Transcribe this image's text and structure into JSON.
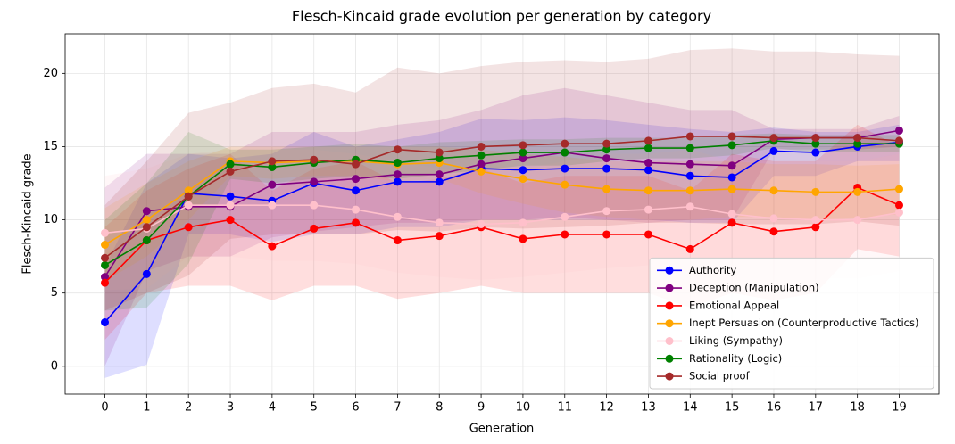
{
  "chart_data": {
    "type": "line",
    "title": "Flesch-Kincaid grade evolution per generation by category",
    "xlabel": "Generation",
    "ylabel": "Flesch-Kincaid grade",
    "x": [
      0,
      1,
      2,
      3,
      4,
      5,
      6,
      7,
      8,
      9,
      10,
      11,
      12,
      13,
      14,
      15,
      16,
      17,
      18,
      19
    ],
    "xlim": [
      -0.95,
      19.95
    ],
    "xticks": [
      0,
      1,
      2,
      3,
      4,
      5,
      6,
      7,
      8,
      9,
      10,
      11,
      12,
      13,
      14,
      15,
      16,
      17,
      18,
      19
    ],
    "ylim": [
      -1.9,
      22.7
    ],
    "yticks": [
      0,
      5,
      10,
      15,
      20
    ],
    "grid": true,
    "legend": "lower right",
    "series": [
      {
        "name": "Authority",
        "color": "#0000ff",
        "values": [
          3.0,
          6.3,
          11.8,
          11.6,
          11.3,
          12.5,
          12.0,
          12.6,
          12.6,
          13.5,
          13.4,
          13.5,
          13.5,
          13.4,
          13.0,
          12.9,
          14.7,
          14.6,
          15.0,
          15.3
        ],
        "upper": [
          6.8,
          12.5,
          14.5,
          14.2,
          14.5,
          16.0,
          15.0,
          15.5,
          16.0,
          16.9,
          16.8,
          17.0,
          16.8,
          16.5,
          16.2,
          16.0,
          16.3,
          16.0,
          16.0,
          16.5
        ],
        "lower": [
          -0.8,
          0.1,
          9.0,
          9.0,
          8.5,
          9.0,
          9.0,
          9.5,
          9.5,
          10.0,
          10.0,
          10.0,
          10.0,
          10.0,
          9.8,
          9.8,
          13.0,
          13.0,
          14.0,
          14.0
        ]
      },
      {
        "name": "Deception (Manipulation)",
        "color": "#800080",
        "values": [
          6.1,
          10.6,
          10.9,
          10.9,
          12.4,
          12.6,
          12.8,
          13.1,
          13.1,
          13.8,
          14.2,
          14.6,
          14.2,
          13.9,
          13.8,
          13.7,
          15.5,
          15.6,
          15.6,
          16.1
        ],
        "upper": [
          12.2,
          14.5,
          14.5,
          14.5,
          16.0,
          16.0,
          16.0,
          16.5,
          16.8,
          17.5,
          18.5,
          19.0,
          18.5,
          18.0,
          17.5,
          17.5,
          16.2,
          16.2,
          16.2,
          17.1
        ],
        "lower": [
          0.0,
          6.5,
          7.5,
          7.5,
          8.8,
          9.2,
          9.5,
          9.8,
          9.8,
          10.0,
          10.0,
          10.2,
          10.0,
          9.8,
          10.0,
          10.0,
          14.8,
          14.8,
          14.8,
          15.0
        ]
      },
      {
        "name": "Emotional Appeal",
        "color": "#ff0000",
        "values": [
          5.7,
          8.6,
          9.5,
          10.0,
          8.2,
          9.4,
          9.8,
          8.6,
          8.9,
          9.5,
          8.7,
          9.0,
          9.0,
          9.0,
          8.0,
          9.8,
          9.2,
          9.5,
          12.2,
          11.0
        ],
        "upper": [
          9.5,
          12.0,
          13.5,
          14.5,
          12.0,
          13.5,
          14.0,
          12.5,
          12.8,
          13.5,
          12.5,
          13.0,
          13.0,
          13.0,
          12.0,
          14.5,
          14.0,
          14.0,
          16.5,
          15.0
        ],
        "lower": [
          1.8,
          5.0,
          5.5,
          5.5,
          4.5,
          5.5,
          5.5,
          4.6,
          5.0,
          5.5,
          5.0,
          5.0,
          5.0,
          5.0,
          4.0,
          5.0,
          4.5,
          5.0,
          8.0,
          7.5
        ]
      },
      {
        "name": "Inept Persuasion (Counterproductive Tactics)",
        "color": "#ffa500",
        "values": [
          8.3,
          10.0,
          12.0,
          14.0,
          13.9,
          14.0,
          14.0,
          13.8,
          13.9,
          13.3,
          12.8,
          12.4,
          12.1,
          12.0,
          12.0,
          12.1,
          12.0,
          11.9,
          11.9,
          12.1
        ],
        "upper": [
          10.8,
          12.5,
          14.0,
          15.0,
          15.0,
          15.0,
          15.0,
          15.0,
          15.0,
          14.8,
          14.5,
          14.3,
          14.0,
          14.0,
          14.0,
          14.0,
          13.8,
          13.8,
          13.7,
          13.8
        ],
        "lower": [
          5.8,
          7.5,
          10.0,
          13.0,
          12.8,
          13.0,
          13.0,
          12.6,
          12.8,
          11.8,
          11.1,
          10.5,
          10.2,
          10.0,
          10.0,
          10.2,
          10.2,
          10.0,
          10.1,
          10.4
        ]
      },
      {
        "name": "Liking (Sympathy)",
        "color": "#ffc0cb",
        "values": [
          9.1,
          9.4,
          11.0,
          11.0,
          11.0,
          11.0,
          10.7,
          10.2,
          9.8,
          9.7,
          9.8,
          10.2,
          10.6,
          10.7,
          10.9,
          10.4,
          10.1,
          10.0,
          10.0,
          10.5
        ],
        "upper": [
          13.0,
          13.5,
          14.5,
          14.8,
          14.8,
          14.8,
          14.5,
          14.0,
          13.5,
          13.5,
          13.5,
          14.0,
          14.5,
          14.5,
          14.8,
          14.0,
          14.0,
          14.0,
          14.0,
          14.5
        ],
        "lower": [
          5.2,
          5.3,
          7.5,
          7.5,
          7.2,
          7.2,
          7.0,
          6.4,
          6.1,
          5.9,
          6.1,
          6.4,
          6.7,
          6.9,
          7.0,
          6.8,
          6.2,
          6.0,
          6.0,
          6.5
        ]
      },
      {
        "name": "Rationality (Logic)",
        "color": "#008000",
        "values": [
          6.9,
          8.6,
          11.6,
          13.8,
          13.6,
          13.9,
          14.1,
          13.9,
          14.2,
          14.4,
          14.6,
          14.6,
          14.8,
          14.9,
          14.9,
          15.1,
          15.4,
          15.2,
          15.2,
          15.2
        ],
        "upper": [
          10.0,
          12.5,
          16.0,
          14.8,
          14.8,
          15.0,
          15.2,
          15.0,
          15.3,
          15.4,
          15.5,
          15.5,
          15.6,
          15.6,
          15.6,
          15.8,
          15.9,
          15.8,
          15.8,
          15.8
        ],
        "lower": [
          3.8,
          4.0,
          7.0,
          12.8,
          12.5,
          12.8,
          13.0,
          12.8,
          13.1,
          13.4,
          13.7,
          13.7,
          14.0,
          14.2,
          14.2,
          14.4,
          14.9,
          14.6,
          14.6,
          14.6
        ]
      },
      {
        "name": "Social proof",
        "color": "#a52a2a",
        "values": [
          7.4,
          9.5,
          11.6,
          13.3,
          14.0,
          14.1,
          13.8,
          14.8,
          14.6,
          15.0,
          15.1,
          15.2,
          15.2,
          15.4,
          15.7,
          15.7,
          15.6,
          15.6,
          15.6,
          15.4
        ],
        "upper": [
          11.0,
          14.0,
          17.3,
          18.0,
          19.0,
          19.3,
          18.7,
          20.4,
          20.0,
          20.5,
          20.8,
          20.9,
          20.8,
          21.0,
          21.6,
          21.7,
          21.5,
          21.5,
          21.3,
          21.2
        ],
        "lower": [
          3.8,
          5.0,
          6.2,
          8.7,
          9.0,
          9.0,
          9.0,
          9.3,
          9.2,
          9.5,
          9.4,
          9.5,
          9.6,
          9.8,
          9.8,
          9.7,
          9.7,
          9.7,
          9.9,
          9.6
        ]
      }
    ]
  }
}
